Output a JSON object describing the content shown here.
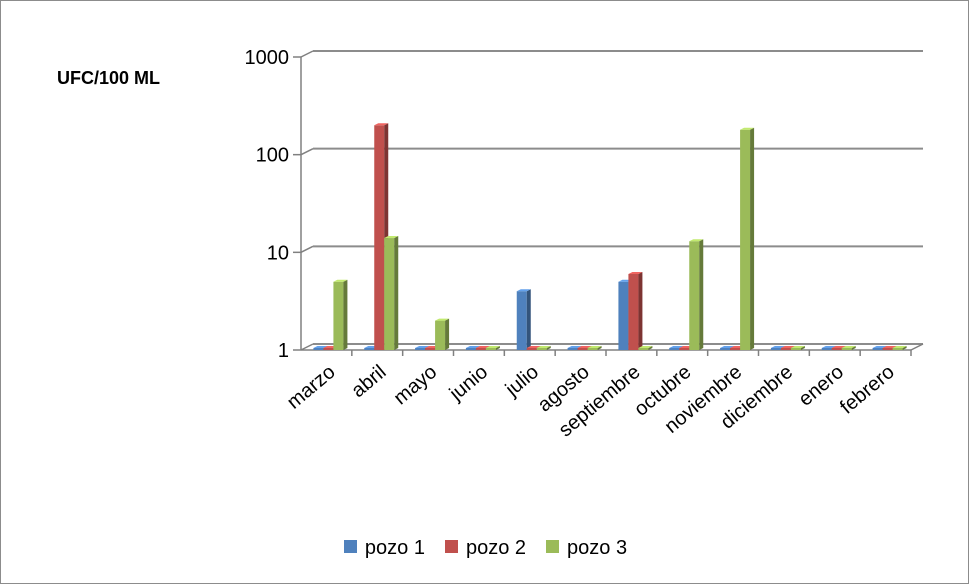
{
  "chart_data": {
    "type": "bar",
    "ylabel": "UFC/100 ML",
    "yscale": "log",
    "ylim": [
      1,
      1000
    ],
    "yticks": [
      {
        "value": 1,
        "label": "1"
      },
      {
        "value": 10,
        "label": "10"
      },
      {
        "value": 100,
        "label": "100"
      },
      {
        "value": 1000,
        "label": "1000"
      }
    ],
    "categories": [
      "marzo",
      "abril",
      "mayo",
      "junio",
      "julio",
      "agosto",
      "septiembre",
      "octubre",
      "noviembre",
      "diciembre",
      "enero",
      "febrero"
    ],
    "series": [
      {
        "name": "pozo 1",
        "color": "#4f81bd",
        "values": [
          1,
          1,
          1,
          1,
          4,
          1,
          5,
          1,
          1,
          1,
          1,
          1
        ]
      },
      {
        "name": "pozo 2",
        "color": "#c0504d",
        "values": [
          1,
          200,
          1,
          1,
          1,
          1,
          6,
          1,
          1,
          1,
          1,
          1
        ]
      },
      {
        "name": "pozo 3",
        "color": "#9bbb59",
        "values": [
          5,
          14,
          2,
          1,
          1,
          1,
          1,
          13,
          180,
          1,
          1,
          1
        ]
      }
    ],
    "grid": true,
    "legend_position": "bottom"
  }
}
